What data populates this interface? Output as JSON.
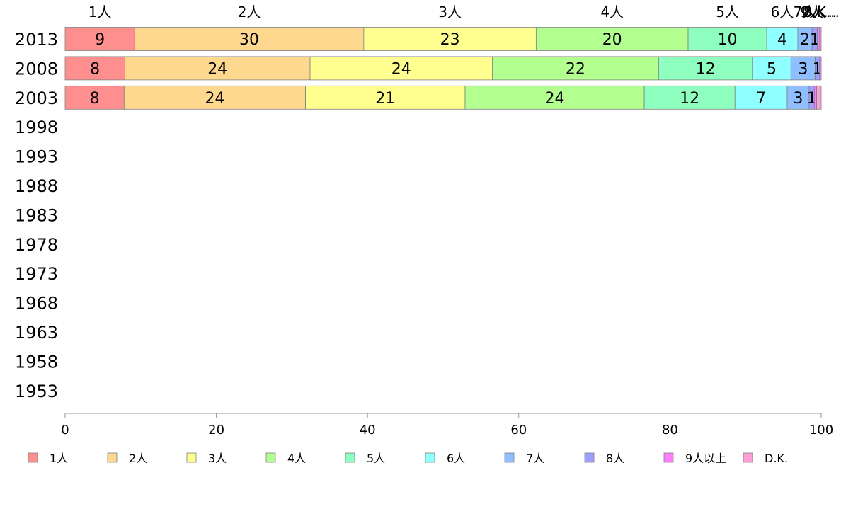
{
  "chart_data": {
    "type": "bar",
    "orientation": "horizontal",
    "stacked": true,
    "years": [
      "2013",
      "2008",
      "2003",
      "1998",
      "1993",
      "1988",
      "1983",
      "1978",
      "1973",
      "1968",
      "1963",
      "1958",
      "1953"
    ],
    "categories": [
      "1人",
      "2人",
      "3人",
      "4人",
      "5人",
      "6人",
      "7人",
      "8人",
      "9人以上",
      "D.K."
    ],
    "colors": [
      "#ff8f8f",
      "#ffd890",
      "#ffff8f",
      "#b3ff8f",
      "#8fffbf",
      "#8fffff",
      "#8fbfff",
      "#9f9fff",
      "#ff7fff",
      "#ff9fd8"
    ],
    "top_labels": [
      "1人",
      "2人",
      "3人",
      "4人",
      "5人",
      "6人",
      "7人",
      "8人",
      "9人...",
      "D.K..."
    ],
    "series": [
      {
        "year": "2013",
        "values": [
          9.2,
          30.3,
          22.8,
          20.1,
          10.4,
          4.1,
          1.9,
          0.7,
          0.3,
          0.2
        ],
        "labels": [
          "9",
          "30",
          "23",
          "20",
          "10",
          "4",
          "2",
          "1",
          "",
          ""
        ]
      },
      {
        "year": "2008",
        "values": [
          7.9,
          24.5,
          24.1,
          22.0,
          12.4,
          5.1,
          3.2,
          0.6,
          0.2,
          0.0
        ],
        "labels": [
          "8",
          "24",
          "24",
          "22",
          "12",
          "5",
          "3",
          "1",
          "",
          ""
        ]
      },
      {
        "year": "2003",
        "values": [
          7.8,
          24.0,
          21.1,
          23.7,
          12.0,
          6.9,
          2.9,
          0.7,
          0.3,
          0.6
        ],
        "labels": [
          "8",
          "24",
          "21",
          "24",
          "12",
          "7",
          "3",
          "1",
          "",
          ""
        ]
      }
    ],
    "xlim": [
      0,
      100
    ],
    "xticks": [
      "0",
      "20",
      "40",
      "60",
      "80",
      "100"
    ],
    "legend_position": "bottom"
  }
}
